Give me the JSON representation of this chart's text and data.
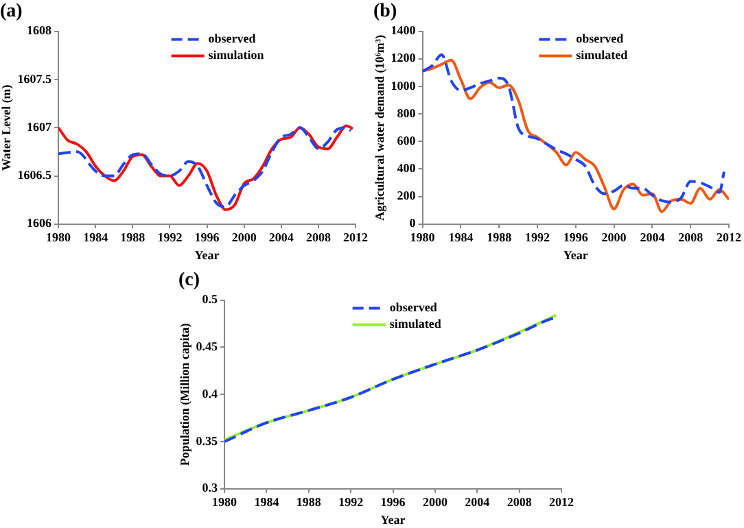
{
  "chart_data": [
    {
      "type": "line",
      "title": "(a)",
      "xlabel": "Year",
      "ylabel": "Water Level (m)",
      "xlim": [
        1980,
        2012
      ],
      "xticks": [
        1980,
        1984,
        1988,
        1992,
        1996,
        2000,
        2004,
        2008,
        2012
      ],
      "ylim": [
        1606,
        1608
      ],
      "yticks": [
        1606,
        1606.5,
        1607,
        1607.5,
        1608
      ],
      "grid": false,
      "legend": "top",
      "series": [
        {
          "name": "observed",
          "color": "#2244ee",
          "line_style": "dashed",
          "x": [
            1980,
            1982,
            1984,
            1985,
            1986,
            1987,
            1988,
            1989,
            1990,
            1991,
            1992,
            1993,
            1994,
            1995,
            1996,
            1997,
            1998,
            1999,
            2000,
            2001,
            2002,
            2003,
            2004,
            2005,
            2006,
            2007,
            2008,
            2009,
            2010,
            2011,
            2011.5
          ],
          "values": [
            1606.73,
            1606.75,
            1606.55,
            1606.5,
            1606.5,
            1606.62,
            1606.72,
            1606.73,
            1606.62,
            1606.52,
            1606.5,
            1606.55,
            1606.65,
            1606.6,
            1606.4,
            1606.22,
            1606.18,
            1606.3,
            1606.4,
            1606.45,
            1606.55,
            1606.75,
            1606.9,
            1606.93,
            1607,
            1606.9,
            1606.78,
            1606.85,
            1606.98,
            1607,
            1606.97
          ]
        },
        {
          "name": "simulation",
          "color": "#ee1111",
          "line_style": "solid",
          "x": [
            1980,
            1981,
            1982,
            1983,
            1984,
            1985,
            1986,
            1987,
            1988,
            1989,
            1990,
            1991,
            1992,
            1993,
            1994,
            1995,
            1996,
            1997,
            1998,
            1999,
            2000,
            2001,
            2002,
            2003,
            2004,
            2005,
            2006,
            2007,
            2008,
            2009,
            2010,
            2011,
            2011.7
          ],
          "values": [
            1607,
            1606.87,
            1606.83,
            1606.75,
            1606.6,
            1606.5,
            1606.45,
            1606.55,
            1606.7,
            1606.72,
            1606.6,
            1606.5,
            1606.5,
            1606.4,
            1606.5,
            1606.63,
            1606.55,
            1606.3,
            1606.15,
            1606.2,
            1606.42,
            1606.47,
            1606.6,
            1606.78,
            1606.88,
            1606.9,
            1607,
            1606.93,
            1606.8,
            1606.78,
            1606.9,
            1607.02,
            1606.99
          ]
        }
      ]
    },
    {
      "type": "line",
      "title": "(b)",
      "xlabel": "Year",
      "ylabel": "Agricultural water demand (10⁶m³)",
      "xlim": [
        1980,
        2012
      ],
      "xticks": [
        1980,
        1984,
        1988,
        1992,
        1996,
        2000,
        2004,
        2008,
        2012
      ],
      "ylim": [
        0,
        1400
      ],
      "yticks": [
        0,
        200,
        400,
        600,
        800,
        1000,
        1200,
        1400
      ],
      "grid": false,
      "legend": "top",
      "series": [
        {
          "name": "observed",
          "color": "#2244ee",
          "line_style": "dashed",
          "x": [
            1980,
            1981,
            1982,
            1983,
            1984,
            1985,
            1986,
            1987,
            1988,
            1989,
            1990,
            1991,
            1992,
            1993,
            1994,
            1995,
            1996,
            1997,
            1998,
            1999,
            2000,
            2001,
            2002,
            2003,
            2004,
            2005,
            2006,
            2007,
            2008,
            2009,
            2010,
            2011,
            2011.5
          ],
          "values": [
            1110,
            1150,
            1230,
            1040,
            970,
            990,
            1020,
            1040,
            1060,
            1000,
            700,
            640,
            620,
            580,
            540,
            510,
            470,
            420,
            280,
            220,
            240,
            280,
            260,
            260,
            210,
            170,
            160,
            190,
            310,
            300,
            270,
            230,
            380
          ]
        },
        {
          "name": "simulated",
          "color": "#f05a14",
          "line_style": "solid",
          "x": [
            1980,
            1981,
            1982,
            1983,
            1984,
            1985,
            1986,
            1987,
            1988,
            1989,
            1990,
            1991,
            1992,
            1993,
            1994,
            1995,
            1996,
            1997,
            1998,
            1999,
            2000,
            2001,
            2002,
            2003,
            2004,
            2005,
            2006,
            2007,
            2008,
            2009,
            2010,
            2011,
            2012
          ],
          "values": [
            1110,
            1130,
            1160,
            1190,
            1050,
            910,
            990,
            1030,
            990,
            1010,
            900,
            680,
            630,
            580,
            520,
            430,
            520,
            470,
            420,
            270,
            110,
            250,
            290,
            210,
            220,
            90,
            170,
            180,
            150,
            260,
            180,
            250,
            180
          ]
        }
      ]
    },
    {
      "type": "line",
      "title": "(c)",
      "xlabel": "Year",
      "ylabel": "Population (Million capita)",
      "xlim": [
        1980,
        2012
      ],
      "xticks": [
        1980,
        1984,
        1988,
        1992,
        1996,
        2000,
        2004,
        2008,
        2012
      ],
      "ylim": [
        0.3,
        0.5
      ],
      "yticks": [
        0.3,
        0.35,
        0.4,
        0.45,
        0.5
      ],
      "grid": false,
      "legend": "top",
      "series": [
        {
          "name": "observed",
          "color": "#2244ee",
          "line_style": "dashed",
          "x": [
            1980,
            1984,
            1988,
            1992,
            1996,
            2000,
            2004,
            2008,
            2011,
            2011.5
          ],
          "values": [
            0.35,
            0.37,
            0.383,
            0.397,
            0.416,
            0.432,
            0.447,
            0.465,
            0.48,
            0.481
          ]
        },
        {
          "name": "simulated",
          "color": "#99ee33",
          "line_style": "solid",
          "x": [
            1980,
            1984,
            1988,
            1992,
            1996,
            2000,
            2004,
            2008,
            2011.5
          ],
          "values": [
            0.352,
            0.37,
            0.383,
            0.397,
            0.416,
            0.432,
            0.447,
            0.466,
            0.484
          ]
        }
      ]
    }
  ]
}
